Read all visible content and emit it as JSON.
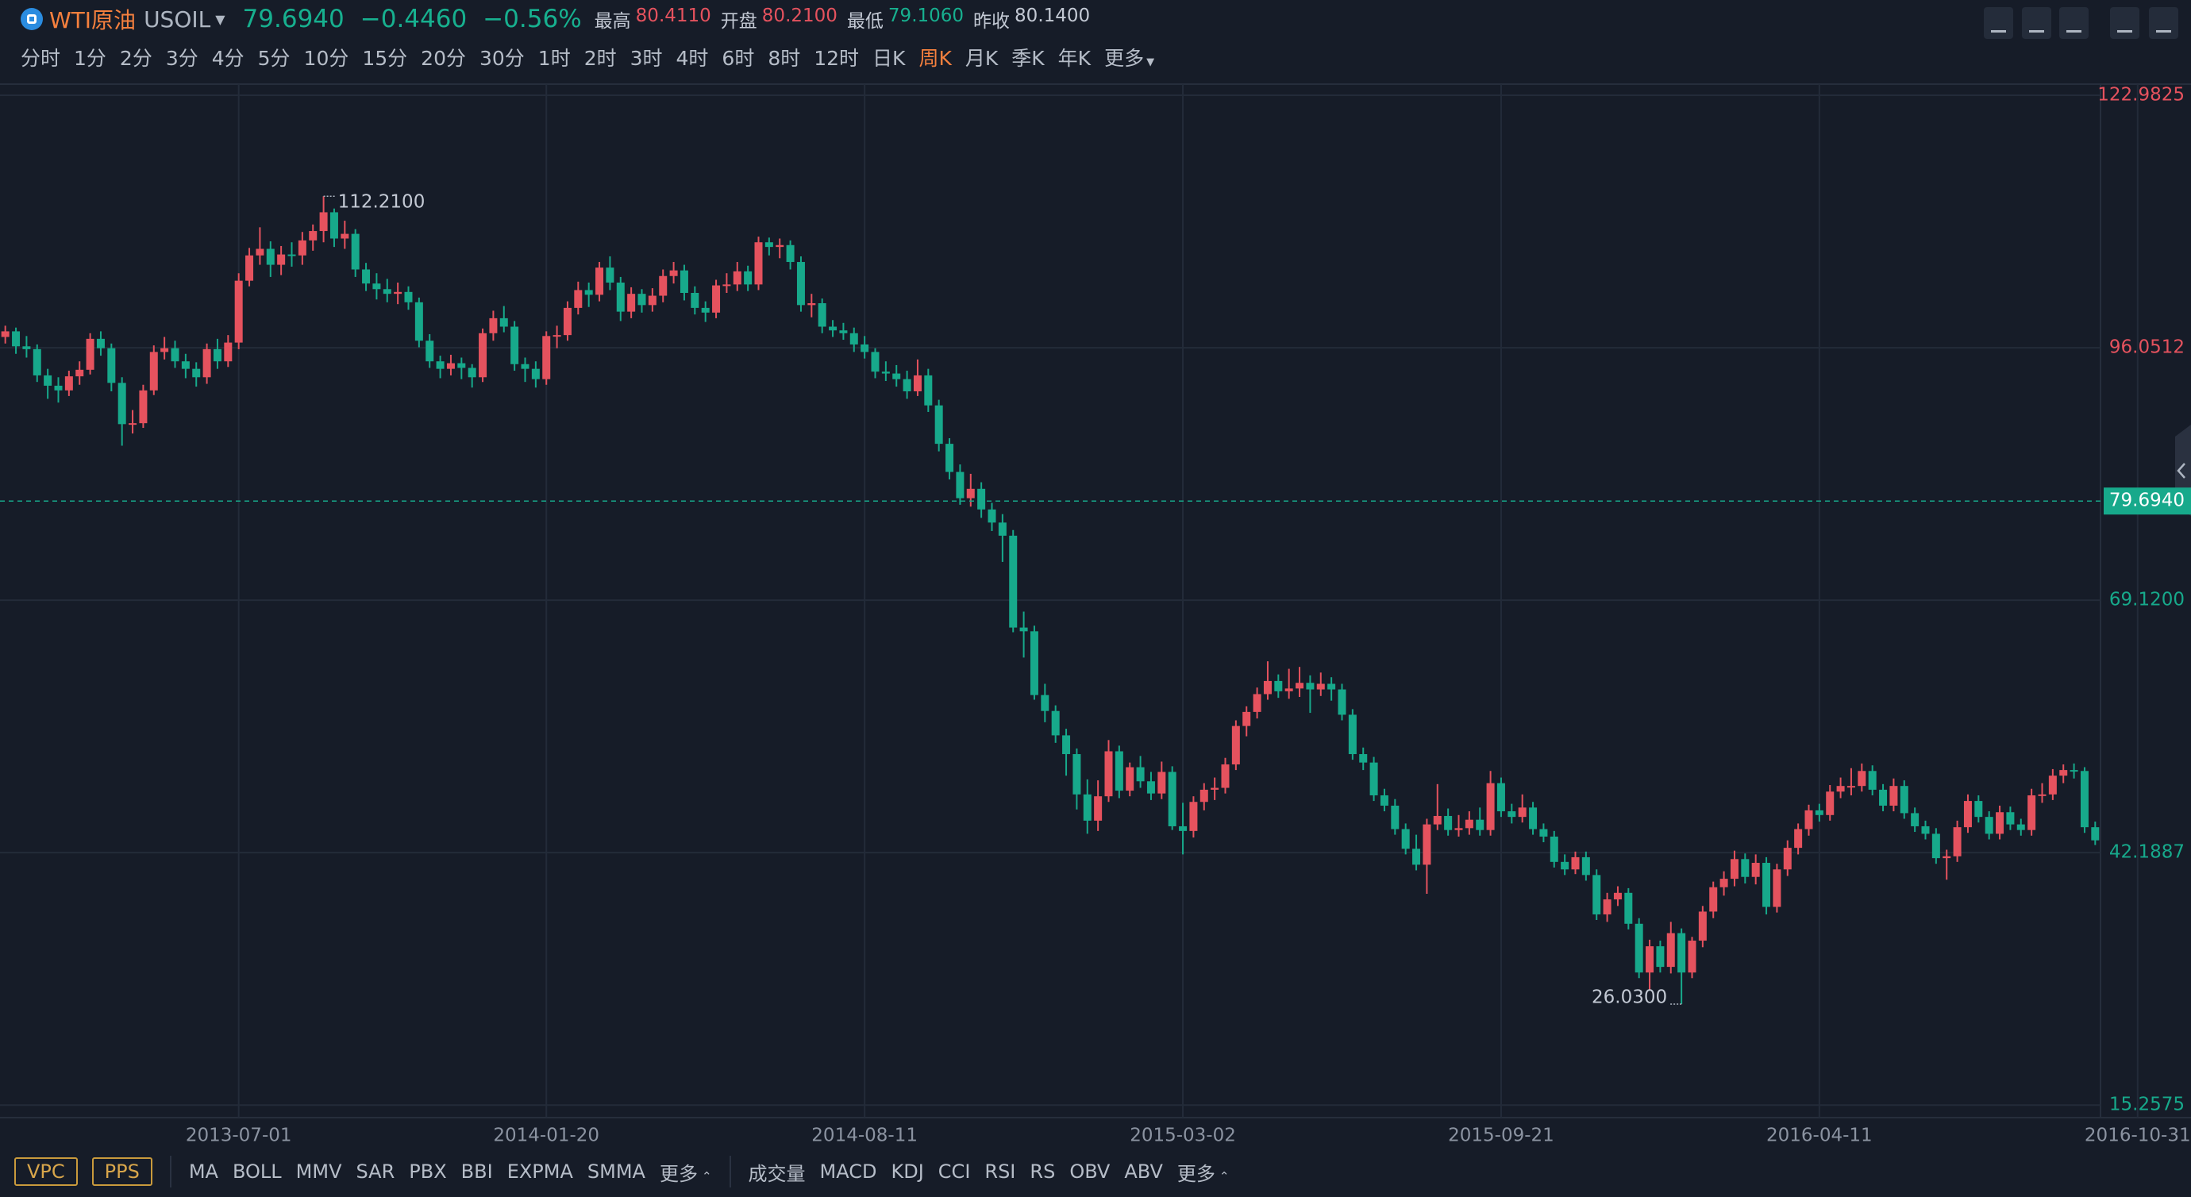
{
  "header": {
    "symbol_name": "WTI原油",
    "symbol_code": "USOIL",
    "change": "−0.4460",
    "change_pct": "−0.56%",
    "change_color": "#17b08f",
    "stats": [
      {
        "label": "最高",
        "value": "80.4110",
        "color": "#e5525e"
      },
      {
        "label": "开盘",
        "value": "80.2100",
        "color": "#e5525e"
      },
      {
        "label": "最低",
        "value": "79.1060",
        "color": "#17b08f"
      },
      {
        "label": "昨收",
        "value": "80.1400",
        "color": "#c3c9d4"
      }
    ]
  },
  "timeframes": {
    "items": [
      "分时",
      "1分",
      "2分",
      "3分",
      "4分",
      "5分",
      "10分",
      "15分",
      "20分",
      "30分",
      "1时",
      "2时",
      "3时",
      "4时",
      "6时",
      "8时",
      "12时",
      "日K",
      "周K",
      "月K",
      "季K",
      "年K",
      "更多"
    ],
    "active": 18,
    "active_color": "#f5803e"
  },
  "indicators": {
    "tools": [
      "VPC",
      "PPS"
    ],
    "main": [
      "MA",
      "BOLL",
      "MMV",
      "SAR",
      "PBX",
      "BBI",
      "EXPMA",
      "SMMA",
      "更多"
    ],
    "sub": [
      "成交量",
      "MACD",
      "KDJ",
      "CCI",
      "RSI",
      "RS",
      "OBV",
      "ABV",
      "更多"
    ]
  },
  "chart_data": {
    "type": "candlestick",
    "up_color": "#e5525e",
    "down_color": "#17a98b",
    "grid": true,
    "ylim": [
      13.92,
      124.17
    ],
    "yticks": [
      15.2575,
      42.1887,
      {
        "value": 69.12,
        "label": "69.1200"
      },
      96.0512,
      122.9825
    ],
    "last_price": {
      "value": 79.694,
      "label": "79.6940"
    },
    "last_price_color": "#17a98b",
    "annotations": [
      {
        "value": 112.21,
        "label": "112.2100"
      },
      {
        "value": 26.03,
        "label": "26.0300"
      }
    ],
    "categories": [
      null,
      null,
      null,
      null,
      null,
      null,
      null,
      null,
      null,
      null,
      null,
      null,
      null,
      null,
      null,
      null,
      null,
      null,
      null,
      null,
      null,
      null,
      "2013-07-01",
      null,
      null,
      null,
      null,
      null,
      null,
      null,
      null,
      null,
      null,
      null,
      null,
      null,
      null,
      null,
      null,
      null,
      null,
      null,
      null,
      null,
      null,
      null,
      null,
      null,
      null,
      null,
      null,
      "2014-01-20",
      null,
      null,
      null,
      null,
      null,
      null,
      null,
      null,
      null,
      null,
      null,
      null,
      null,
      null,
      null,
      null,
      null,
      null,
      null,
      null,
      null,
      null,
      null,
      null,
      null,
      null,
      null,
      null,
      null,
      "2014-08-11",
      null,
      null,
      null,
      null,
      null,
      null,
      null,
      null,
      null,
      null,
      null,
      null,
      null,
      null,
      null,
      null,
      null,
      null,
      null,
      null,
      null,
      null,
      null,
      null,
      null,
      null,
      null,
      null,
      null,
      "2015-03-02",
      null,
      null,
      null,
      null,
      null,
      null,
      null,
      null,
      null,
      null,
      null,
      null,
      null,
      null,
      null,
      null,
      null,
      null,
      null,
      null,
      null,
      null,
      null,
      null,
      null,
      null,
      null,
      null,
      null,
      "2015-09-21",
      null,
      null,
      null,
      null,
      null,
      null,
      null,
      null,
      null,
      null,
      null,
      null,
      null,
      null,
      null,
      null,
      null,
      null,
      null,
      null,
      null,
      null,
      null,
      null,
      null,
      null,
      null,
      null,
      null,
      "2016-04-11",
      null,
      null,
      null,
      null,
      null,
      null,
      null,
      null,
      null,
      null,
      null,
      null,
      null,
      null,
      null,
      null,
      null,
      null,
      null,
      null,
      null,
      null,
      null,
      null,
      null,
      null,
      null,
      null,
      null,
      "2016-10-31",
      null
    ],
    "ohlc": [
      [
        97.2,
        98.4,
        96.5,
        97.8
      ],
      [
        97.8,
        98.2,
        95.4,
        96.2
      ],
      [
        96.2,
        97.3,
        95.0,
        95.9
      ],
      [
        95.9,
        96.4,
        92.4,
        93.1
      ],
      [
        93.1,
        93.8,
        90.6,
        92.0
      ],
      [
        92.0,
        92.9,
        90.2,
        91.5
      ],
      [
        91.5,
        93.6,
        90.9,
        93.0
      ],
      [
        93.0,
        94.6,
        92.1,
        93.7
      ],
      [
        93.7,
        97.6,
        93.2,
        97.0
      ],
      [
        97.0,
        97.8,
        95.2,
        96.0
      ],
      [
        96.0,
        96.5,
        91.4,
        92.3
      ],
      [
        92.3,
        92.9,
        85.6,
        87.9
      ],
      [
        87.9,
        89.4,
        86.9,
        88.0
      ],
      [
        88.0,
        92.1,
        87.5,
        91.5
      ],
      [
        91.5,
        96.3,
        91.0,
        95.6
      ],
      [
        95.6,
        97.2,
        94.8,
        96.0
      ],
      [
        96.0,
        96.8,
        93.9,
        94.6
      ],
      [
        94.6,
        95.4,
        92.8,
        93.8
      ],
      [
        93.8,
        94.5,
        91.9,
        92.9
      ],
      [
        92.9,
        96.5,
        92.2,
        95.9
      ],
      [
        95.9,
        97.0,
        93.8,
        94.6
      ],
      [
        94.6,
        97.4,
        94.0,
        96.6
      ],
      [
        96.6,
        104.0,
        95.9,
        103.2
      ],
      [
        103.2,
        106.7,
        102.6,
        105.9
      ],
      [
        105.9,
        108.9,
        104.9,
        106.6
      ],
      [
        106.6,
        107.4,
        103.6,
        104.9
      ],
      [
        104.9,
        106.9,
        103.8,
        106.0
      ],
      [
        106.0,
        107.3,
        104.7,
        105.9
      ],
      [
        105.9,
        108.4,
        104.9,
        107.5
      ],
      [
        107.5,
        109.2,
        106.4,
        108.5
      ],
      [
        108.5,
        112.21,
        107.3,
        110.5
      ],
      [
        110.5,
        110.9,
        106.8,
        107.7
      ],
      [
        107.7,
        109.6,
        106.6,
        108.2
      ],
      [
        108.2,
        108.7,
        103.6,
        104.4
      ],
      [
        104.4,
        105.1,
        102.1,
        102.9
      ],
      [
        102.9,
        104.0,
        101.2,
        102.3
      ],
      [
        102.3,
        103.4,
        100.9,
        101.8
      ],
      [
        101.8,
        103.0,
        100.7,
        102.0
      ],
      [
        102.0,
        102.6,
        100.1,
        100.9
      ],
      [
        100.9,
        101.4,
        96.1,
        96.8
      ],
      [
        96.8,
        97.5,
        93.9,
        94.6
      ],
      [
        94.6,
        95.2,
        92.8,
        93.8
      ],
      [
        93.8,
        95.3,
        93.1,
        94.4
      ],
      [
        94.4,
        95.0,
        92.7,
        93.9
      ],
      [
        93.9,
        94.3,
        91.8,
        92.9
      ],
      [
        92.9,
        98.1,
        92.4,
        97.6
      ],
      [
        97.6,
        100.0,
        96.8,
        99.2
      ],
      [
        99.2,
        100.5,
        97.7,
        98.3
      ],
      [
        98.3,
        98.9,
        93.6,
        94.3
      ],
      [
        94.3,
        95.0,
        92.4,
        93.8
      ],
      [
        93.8,
        94.6,
        91.8,
        92.7
      ],
      [
        92.7,
        97.8,
        92.1,
        97.3
      ],
      [
        97.3,
        98.4,
        96.0,
        97.4
      ],
      [
        97.4,
        101.0,
        96.8,
        100.3
      ],
      [
        100.3,
        103.1,
        99.6,
        102.2
      ],
      [
        102.2,
        103.0,
        100.4,
        101.7
      ],
      [
        101.7,
        105.2,
        101.0,
        104.6
      ],
      [
        104.6,
        105.8,
        102.2,
        103.0
      ],
      [
        103.0,
        103.6,
        98.9,
        99.9
      ],
      [
        99.9,
        102.5,
        99.2,
        101.8
      ],
      [
        101.8,
        102.3,
        99.8,
        100.6
      ],
      [
        100.6,
        102.4,
        99.9,
        101.6
      ],
      [
        101.6,
        104.4,
        100.9,
        103.7
      ],
      [
        103.7,
        105.2,
        102.9,
        104.3
      ],
      [
        104.3,
        104.9,
        101.1,
        101.9
      ],
      [
        101.9,
        102.6,
        99.6,
        100.3
      ],
      [
        100.3,
        101.0,
        98.8,
        99.8
      ],
      [
        99.8,
        103.3,
        99.2,
        102.7
      ],
      [
        102.7,
        104.0,
        101.9,
        102.8
      ],
      [
        102.8,
        105.2,
        102.1,
        104.2
      ],
      [
        104.2,
        104.8,
        102.1,
        102.8
      ],
      [
        102.8,
        107.9,
        102.2,
        107.3
      ],
      [
        107.3,
        107.8,
        105.9,
        106.8
      ],
      [
        106.8,
        107.7,
        105.6,
        107.0
      ],
      [
        107.0,
        107.5,
        104.4,
        105.2
      ],
      [
        105.2,
        105.8,
        99.9,
        100.6
      ],
      [
        100.6,
        101.8,
        99.3,
        100.8
      ],
      [
        100.8,
        101.3,
        97.6,
        98.3
      ],
      [
        98.3,
        99.0,
        97.2,
        97.9
      ],
      [
        97.9,
        98.7,
        96.9,
        97.6
      ],
      [
        97.6,
        98.2,
        95.6,
        96.4
      ],
      [
        96.4,
        97.3,
        94.9,
        95.6
      ],
      [
        95.6,
        96.0,
        92.8,
        93.5
      ],
      [
        93.5,
        94.6,
        92.5,
        93.3
      ],
      [
        93.3,
        94.2,
        91.9,
        92.7
      ],
      [
        92.7,
        93.6,
        90.6,
        91.4
      ],
      [
        91.4,
        94.8,
        90.9,
        93.1
      ],
      [
        93.1,
        93.8,
        89.2,
        89.9
      ],
      [
        89.9,
        90.5,
        85.0,
        85.8
      ],
      [
        85.8,
        86.4,
        82.0,
        82.8
      ],
      [
        82.8,
        83.6,
        79.3,
        80.0
      ],
      [
        80.0,
        82.6,
        79.1,
        81.0
      ],
      [
        81.0,
        81.7,
        77.9,
        78.8
      ],
      [
        78.8,
        79.5,
        76.5,
        77.4
      ],
      [
        77.4,
        78.3,
        73.2,
        76.0
      ],
      [
        76.0,
        76.6,
        65.7,
        66.2
      ],
      [
        66.2,
        67.9,
        63.0,
        65.8
      ],
      [
        65.8,
        66.4,
        58.5,
        59.0
      ],
      [
        59.0,
        60.2,
        56.1,
        57.3
      ],
      [
        57.3,
        57.9,
        53.9,
        54.7
      ],
      [
        54.7,
        55.4,
        50.4,
        52.7
      ],
      [
        52.7,
        53.3,
        46.8,
        48.4
      ],
      [
        48.4,
        50.0,
        44.2,
        45.6
      ],
      [
        45.6,
        49.9,
        44.5,
        48.2
      ],
      [
        48.2,
        54.2,
        47.6,
        53.0
      ],
      [
        53.0,
        53.6,
        48.0,
        48.8
      ],
      [
        48.8,
        51.8,
        48.2,
        51.3
      ],
      [
        51.3,
        52.5,
        49.1,
        49.8
      ],
      [
        49.8,
        50.8,
        47.8,
        48.5
      ],
      [
        48.5,
        51.9,
        47.9,
        50.8
      ],
      [
        50.8,
        51.4,
        44.6,
        45.0
      ],
      [
        45.0,
        47.5,
        42.0,
        44.5
      ],
      [
        44.5,
        48.2,
        43.8,
        47.6
      ],
      [
        47.6,
        49.6,
        46.7,
        48.9
      ],
      [
        48.9,
        50.2,
        47.8,
        49.1
      ],
      [
        49.1,
        52.3,
        48.5,
        51.6
      ],
      [
        51.6,
        56.3,
        51.0,
        55.7
      ],
      [
        55.7,
        57.8,
        54.6,
        57.2
      ],
      [
        57.2,
        59.8,
        56.5,
        59.1
      ],
      [
        59.1,
        62.6,
        58.5,
        60.5
      ],
      [
        60.5,
        61.2,
        58.7,
        59.4
      ],
      [
        59.4,
        61.8,
        58.6,
        59.7
      ],
      [
        59.7,
        62.0,
        58.8,
        60.3
      ],
      [
        60.3,
        61.1,
        57.1,
        59.6
      ],
      [
        59.6,
        61.4,
        58.9,
        60.2
      ],
      [
        60.2,
        60.9,
        58.4,
        59.6
      ],
      [
        59.6,
        60.2,
        56.3,
        56.9
      ],
      [
        56.9,
        57.5,
        52.1,
        52.7
      ],
      [
        52.7,
        53.4,
        51.0,
        51.8
      ],
      [
        51.8,
        52.4,
        47.7,
        48.3
      ],
      [
        48.3,
        49.0,
        46.6,
        47.2
      ],
      [
        47.2,
        47.9,
        44.1,
        44.7
      ],
      [
        44.7,
        45.3,
        42.0,
        42.6
      ],
      [
        42.6,
        44.1,
        40.3,
        40.9
      ],
      [
        40.9,
        45.8,
        37.8,
        45.2
      ],
      [
        45.2,
        49.5,
        44.6,
        46.1
      ],
      [
        46.1,
        46.9,
        44.0,
        44.6
      ],
      [
        44.6,
        46.2,
        43.9,
        44.8
      ],
      [
        44.8,
        46.6,
        44.1,
        45.7
      ],
      [
        45.7,
        47.0,
        44.0,
        44.6
      ],
      [
        44.6,
        50.9,
        44.0,
        49.6
      ],
      [
        49.6,
        50.2,
        46.0,
        46.6
      ],
      [
        46.6,
        47.4,
        45.3,
        46.0
      ],
      [
        46.0,
        48.4,
        45.4,
        47.0
      ],
      [
        47.0,
        47.6,
        44.1,
        44.7
      ],
      [
        44.7,
        45.3,
        43.3,
        43.9
      ],
      [
        43.9,
        44.5,
        40.6,
        41.2
      ],
      [
        41.2,
        42.0,
        39.8,
        40.4
      ],
      [
        40.4,
        42.3,
        39.9,
        41.7
      ],
      [
        41.7,
        42.3,
        39.2,
        39.8
      ],
      [
        39.8,
        40.4,
        35.0,
        35.6
      ],
      [
        35.6,
        37.9,
        34.8,
        37.2
      ],
      [
        37.2,
        38.6,
        36.5,
        37.9
      ],
      [
        37.9,
        38.4,
        34.0,
        34.6
      ],
      [
        34.6,
        35.2,
        28.8,
        29.4
      ],
      [
        29.4,
        32.9,
        27.5,
        32.2
      ],
      [
        32.2,
        32.8,
        29.4,
        30.0
      ],
      [
        30.0,
        34.8,
        29.3,
        33.6
      ],
      [
        33.6,
        34.1,
        26.03,
        29.4
      ],
      [
        29.4,
        33.2,
        28.8,
        32.8
      ],
      [
        32.8,
        36.5,
        32.1,
        35.9
      ],
      [
        35.9,
        39.1,
        35.2,
        38.5
      ],
      [
        38.5,
        40.2,
        37.6,
        39.4
      ],
      [
        39.4,
        42.4,
        38.6,
        41.5
      ],
      [
        41.5,
        42.1,
        38.9,
        39.6
      ],
      [
        39.6,
        42.0,
        38.8,
        41.1
      ],
      [
        41.1,
        41.7,
        35.6,
        36.4
      ],
      [
        36.4,
        41.0,
        35.8,
        40.4
      ],
      [
        40.4,
        43.5,
        39.7,
        42.7
      ],
      [
        42.7,
        45.3,
        42.0,
        44.7
      ],
      [
        44.7,
        47.3,
        44.0,
        46.7
      ],
      [
        46.7,
        47.4,
        45.5,
        46.2
      ],
      [
        46.2,
        49.4,
        45.6,
        48.7
      ],
      [
        48.7,
        50.2,
        48.0,
        49.3
      ],
      [
        49.3,
        51.2,
        48.3,
        49.3
      ],
      [
        49.3,
        51.7,
        48.7,
        50.9
      ],
      [
        50.9,
        51.5,
        48.3,
        48.9
      ],
      [
        48.9,
        49.5,
        46.6,
        47.2
      ],
      [
        47.2,
        50.1,
        46.6,
        49.3
      ],
      [
        49.3,
        49.9,
        45.8,
        46.4
      ],
      [
        46.4,
        47.0,
        44.4,
        45.0
      ],
      [
        45.0,
        45.6,
        43.6,
        44.2
      ],
      [
        44.2,
        44.8,
        41.0,
        41.6
      ],
      [
        41.6,
        42.5,
        39.3,
        41.8
      ],
      [
        41.8,
        45.6,
        41.2,
        44.9
      ],
      [
        44.9,
        48.4,
        44.3,
        47.7
      ],
      [
        47.7,
        48.3,
        45.4,
        46.0
      ],
      [
        46.0,
        46.6,
        43.6,
        44.2
      ],
      [
        44.2,
        47.2,
        43.6,
        46.5
      ],
      [
        46.5,
        47.1,
        44.6,
        45.2
      ],
      [
        45.2,
        45.8,
        44.0,
        44.6
      ],
      [
        44.6,
        49.0,
        44.0,
        48.3
      ],
      [
        48.3,
        49.6,
        47.5,
        48.4
      ],
      [
        48.4,
        51.1,
        47.8,
        50.4
      ],
      [
        50.4,
        51.6,
        49.6,
        51.0
      ],
      [
        51.0,
        51.7,
        50.1,
        50.9
      ],
      [
        50.9,
        51.3,
        44.3,
        44.9
      ],
      [
        44.9,
        45.5,
        43.0,
        43.5
      ]
    ]
  }
}
